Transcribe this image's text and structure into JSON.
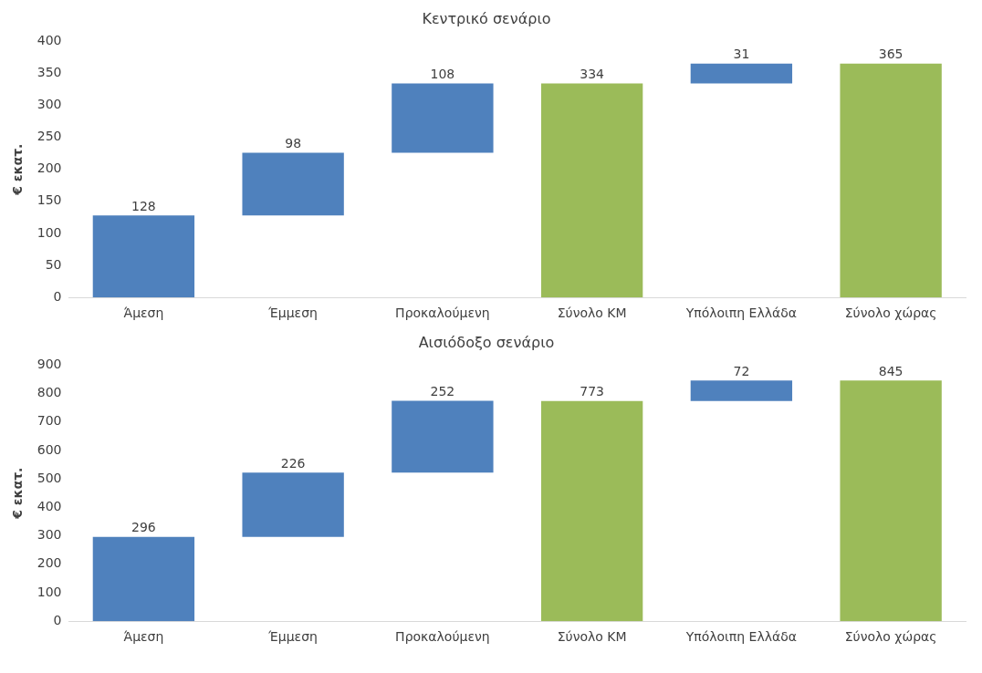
{
  "chart_data": [
    {
      "type": "bar",
      "title": "Κεντρικό σενάριο",
      "ylabel": "€ εκατ.",
      "categories": [
        "Άμεση",
        "Έμμεση",
        "Προκαλούμενη",
        "Σύνολο ΚΜ",
        "Υπόλοιπη Ελλάδα",
        "Σύνολο χώρας"
      ],
      "values": [
        128,
        98,
        108,
        334,
        31,
        365
      ],
      "base": [
        0,
        128,
        226,
        0,
        334,
        0
      ],
      "colors": [
        "#4f81bd",
        "#4f81bd",
        "#4f81bd",
        "#9bbb59",
        "#4f81bd",
        "#9bbb59"
      ],
      "ylim": [
        0,
        400
      ],
      "yticks": [
        0,
        50,
        100,
        150,
        200,
        250,
        300,
        350,
        400
      ],
      "grid": false,
      "legend": false,
      "data_labels": true
    },
    {
      "type": "bar",
      "title": "Αισιόδοξο σενάριο",
      "ylabel": "€ εκατ.",
      "categories": [
        "Άμεση",
        "Έμμεση",
        "Προκαλούμενη",
        "Σύνολο ΚΜ",
        "Υπόλοιπη Ελλάδα",
        "Σύνολο χώρας"
      ],
      "values": [
        296,
        226,
        252,
        773,
        72,
        845
      ],
      "base": [
        0,
        296,
        522,
        0,
        773,
        0
      ],
      "colors": [
        "#4f81bd",
        "#4f81bd",
        "#4f81bd",
        "#9bbb59",
        "#4f81bd",
        "#9bbb59"
      ],
      "ylim": [
        0,
        900
      ],
      "yticks": [
        0,
        100,
        200,
        300,
        400,
        500,
        600,
        700,
        800,
        900
      ],
      "grid": false,
      "legend": false,
      "data_labels": true
    }
  ]
}
